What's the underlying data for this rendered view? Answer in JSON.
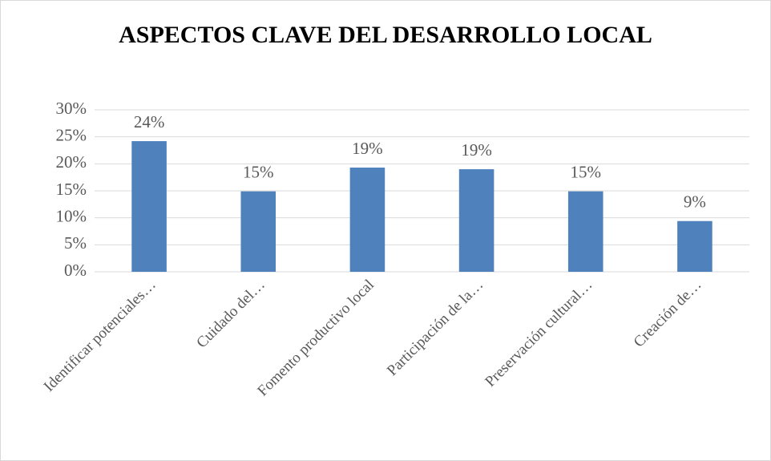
{
  "chart_data": {
    "type": "bar",
    "title": "ASPECTOS CLAVE DEL DESARROLLO LOCAL",
    "categories": [
      "Identificar potenciales…",
      "Cuidado del…",
      "Fomento productivo local",
      "Participación de la…",
      "Preservación cultural…",
      "Creación de…"
    ],
    "values": [
      24.2,
      14.9,
      19.3,
      19.0,
      14.9,
      9.4
    ],
    "value_labels": [
      "24%",
      "15%",
      "19%",
      "19%",
      "15%",
      "9%"
    ],
    "color": "#4f81bd",
    "ylim": [
      0,
      30
    ],
    "yticks": [
      {
        "value": 0,
        "label": "0%"
      },
      {
        "value": 5,
        "label": "5%"
      },
      {
        "value": 10,
        "label": "10%"
      },
      {
        "value": 15,
        "label": "15%"
      },
      {
        "value": 20,
        "label": "20%"
      },
      {
        "value": 25,
        "label": "25%"
      },
      {
        "value": 30,
        "label": "30%"
      }
    ],
    "grid": true
  }
}
